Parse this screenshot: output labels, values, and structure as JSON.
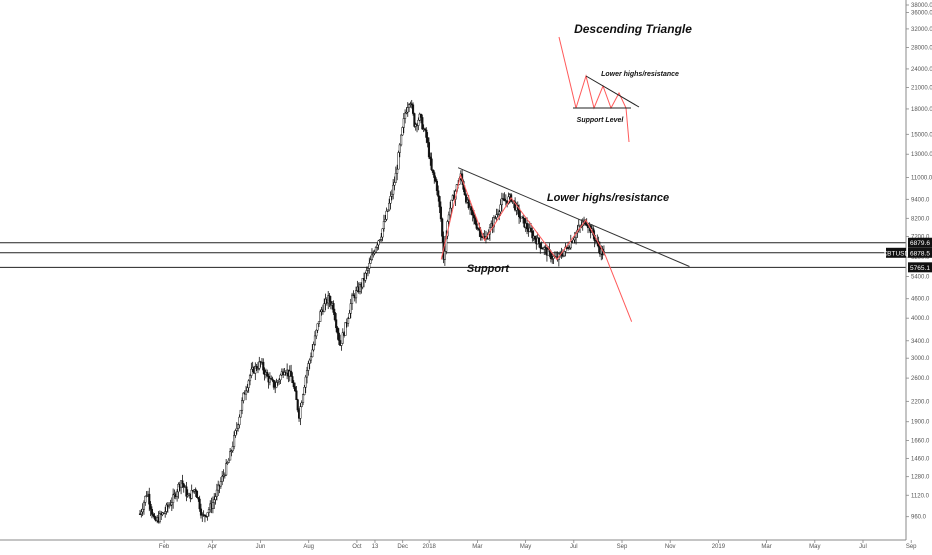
{
  "chart_data": {
    "type": "candlestick",
    "symbol": "XBTUSD",
    "last_price": "6878.5",
    "level_labels": {
      "resistance": "6879.6",
      "support": "5765.1"
    },
    "horizontal_levels": [
      6879.6,
      6400,
      5765.1
    ],
    "y_scale": "log",
    "ylim": [
      860,
      38000
    ],
    "y_ticks": [
      {
        "label": "38000.0",
        "value": 38000
      },
      {
        "label": "36000.0",
        "value": 36000
      },
      {
        "label": "32000.0",
        "value": 32000
      },
      {
        "label": "28000.0",
        "value": 28000
      },
      {
        "label": "24000.0",
        "value": 24000
      },
      {
        "label": "21000.0",
        "value": 21000
      },
      {
        "label": "18000.0",
        "value": 18000
      },
      {
        "label": "15000.0",
        "value": 15000
      },
      {
        "label": "13000.0",
        "value": 13000
      },
      {
        "label": "11000.0",
        "value": 11000
      },
      {
        "label": "9400.0",
        "value": 9400
      },
      {
        "label": "8200.0",
        "value": 8200
      },
      {
        "label": "7200.0",
        "value": 7200
      },
      {
        "label": "6200.0",
        "value": 6200
      },
      {
        "label": "5400.0",
        "value": 5400
      },
      {
        "label": "4600.0",
        "value": 4600
      },
      {
        "label": "4000.0",
        "value": 4000
      },
      {
        "label": "3400.0",
        "value": 3400
      },
      {
        "label": "3000.0",
        "value": 3000
      },
      {
        "label": "2600.0",
        "value": 2600
      },
      {
        "label": "2200.0",
        "value": 2200
      },
      {
        "label": "1900.0",
        "value": 1900
      },
      {
        "label": "1660.0",
        "value": 1660
      },
      {
        "label": "1460.0",
        "value": 1460
      },
      {
        "label": "1280.0",
        "value": 1280
      },
      {
        "label": "1120.0",
        "value": 1120
      },
      {
        "label": "960.0",
        "value": 960
      }
    ],
    "x_ticks": [
      {
        "label": "Feb",
        "t": 1
      },
      {
        "label": "Apr",
        "t": 3
      },
      {
        "label": "Jun",
        "t": 5
      },
      {
        "label": "Aug",
        "t": 7
      },
      {
        "label": "Oct",
        "t": 9
      },
      {
        "label": "13",
        "t": 9.75
      },
      {
        "label": "Dec",
        "t": 10.9
      },
      {
        "label": "2018",
        "t": 12
      },
      {
        "label": "Mar",
        "t": 14
      },
      {
        "label": "May",
        "t": 16
      },
      {
        "label": "Jul",
        "t": 18
      },
      {
        "label": "Sep",
        "t": 20
      },
      {
        "label": "Nov",
        "t": 22
      },
      {
        "label": "2019",
        "t": 24
      },
      {
        "label": "Mar",
        "t": 26
      },
      {
        "label": "May",
        "t": 28
      },
      {
        "label": "Jul",
        "t": 30
      },
      {
        "label": "Sep",
        "t": 32
      }
    ],
    "price_path": [
      [
        0.0,
        980
      ],
      [
        0.3,
        1150
      ],
      [
        0.6,
        920
      ],
      [
        1.0,
        990
      ],
      [
        1.4,
        1100
      ],
      [
        1.7,
        1250
      ],
      [
        2.0,
        1100
      ],
      [
        2.3,
        1180
      ],
      [
        2.6,
        950
      ],
      [
        3.0,
        1050
      ],
      [
        3.3,
        1200
      ],
      [
        3.7,
        1450
      ],
      [
        4.0,
        1800
      ],
      [
        4.3,
        2300
      ],
      [
        4.6,
        2700
      ],
      [
        5.0,
        2900
      ],
      [
        5.3,
        2600
      ],
      [
        5.6,
        2450
      ],
      [
        6.0,
        2800
      ],
      [
        6.3,
        2600
      ],
      [
        6.6,
        2000
      ],
      [
        6.9,
        2700
      ],
      [
        7.2,
        3300
      ],
      [
        7.5,
        4200
      ],
      [
        7.8,
        4600
      ],
      [
        8.0,
        4400
      ],
      [
        8.3,
        3300
      ],
      [
        8.5,
        3700
      ],
      [
        8.8,
        4600
      ],
      [
        9.2,
        5100
      ],
      [
        9.5,
        5800
      ],
      [
        9.8,
        6800
      ],
      [
        10.0,
        7300
      ],
      [
        10.3,
        8800
      ],
      [
        10.6,
        11000
      ],
      [
        10.8,
        14000
      ],
      [
        11.0,
        17500
      ],
      [
        11.2,
        19500
      ],
      [
        11.4,
        16000
      ],
      [
        11.6,
        17000
      ],
      [
        11.9,
        14500
      ],
      [
        12.1,
        11500
      ],
      [
        12.3,
        10500
      ],
      [
        12.5,
        8000
      ],
      [
        12.6,
        6100
      ],
      [
        12.8,
        8500
      ],
      [
        13.0,
        9500
      ],
      [
        13.3,
        11200
      ],
      [
        13.6,
        9000
      ],
      [
        13.9,
        8000
      ],
      [
        14.3,
        7000
      ],
      [
        14.6,
        7800
      ],
      [
        15.0,
        9200
      ],
      [
        15.4,
        9500
      ],
      [
        15.8,
        8200
      ],
      [
        16.2,
        7400
      ],
      [
        16.6,
        6800
      ],
      [
        17.0,
        6300
      ],
      [
        17.3,
        6100
      ],
      [
        17.7,
        6600
      ],
      [
        18.2,
        7600
      ],
      [
        18.5,
        8100
      ],
      [
        18.8,
        7300
      ],
      [
        19.1,
        6500
      ],
      [
        19.3,
        6300
      ]
    ],
    "annotations": [
      {
        "text": "Descending Triangle"
      },
      {
        "text": "Lower highs/resistance"
      },
      {
        "text": "Support Level"
      },
      {
        "text": "Lower highs/resistance"
      },
      {
        "text": "Support"
      }
    ]
  },
  "colors": {
    "candle": "#111111",
    "trendline": "#333333",
    "highlight": "#ff5a5a",
    "grid_axis": "#888888",
    "badge_bg": "#111111",
    "badge_text": "#ffffff"
  }
}
